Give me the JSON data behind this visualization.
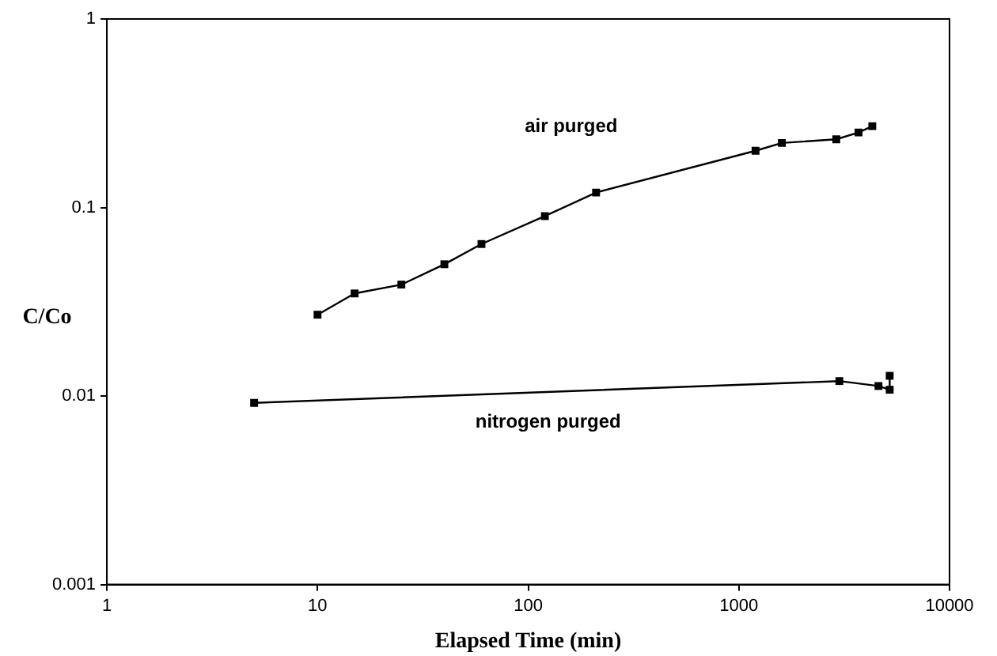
{
  "chart_data": {
    "type": "line",
    "xlabel": "Elapsed Time (min)",
    "ylabel": "C/Co",
    "log": "xy",
    "grid": false,
    "legend": false,
    "marker": "square",
    "line_style": "solid",
    "xlim": [
      1,
      10000
    ],
    "xticks": [
      1,
      10,
      100,
      1000,
      10000
    ],
    "ylim": [
      0.001,
      1
    ],
    "yticks": [
      0.001,
      0.01,
      0.1,
      1
    ],
    "series": [
      {
        "name": "air purged",
        "color": "#000000",
        "x": [
          10,
          15,
          25,
          40,
          60,
          120,
          210,
          1200,
          1600,
          2900,
          3700,
          4300
        ],
        "values": [
          0.027,
          0.035,
          0.039,
          0.05,
          0.064,
          0.09,
          0.12,
          0.2,
          0.22,
          0.23,
          0.25,
          0.27
        ]
      },
      {
        "name": "nitrogen purged",
        "color": "#000000",
        "x": [
          5,
          3000,
          4600,
          5200,
          5200
        ],
        "values": [
          0.0092,
          0.012,
          0.0113,
          0.0108,
          0.0128
        ]
      }
    ]
  }
}
